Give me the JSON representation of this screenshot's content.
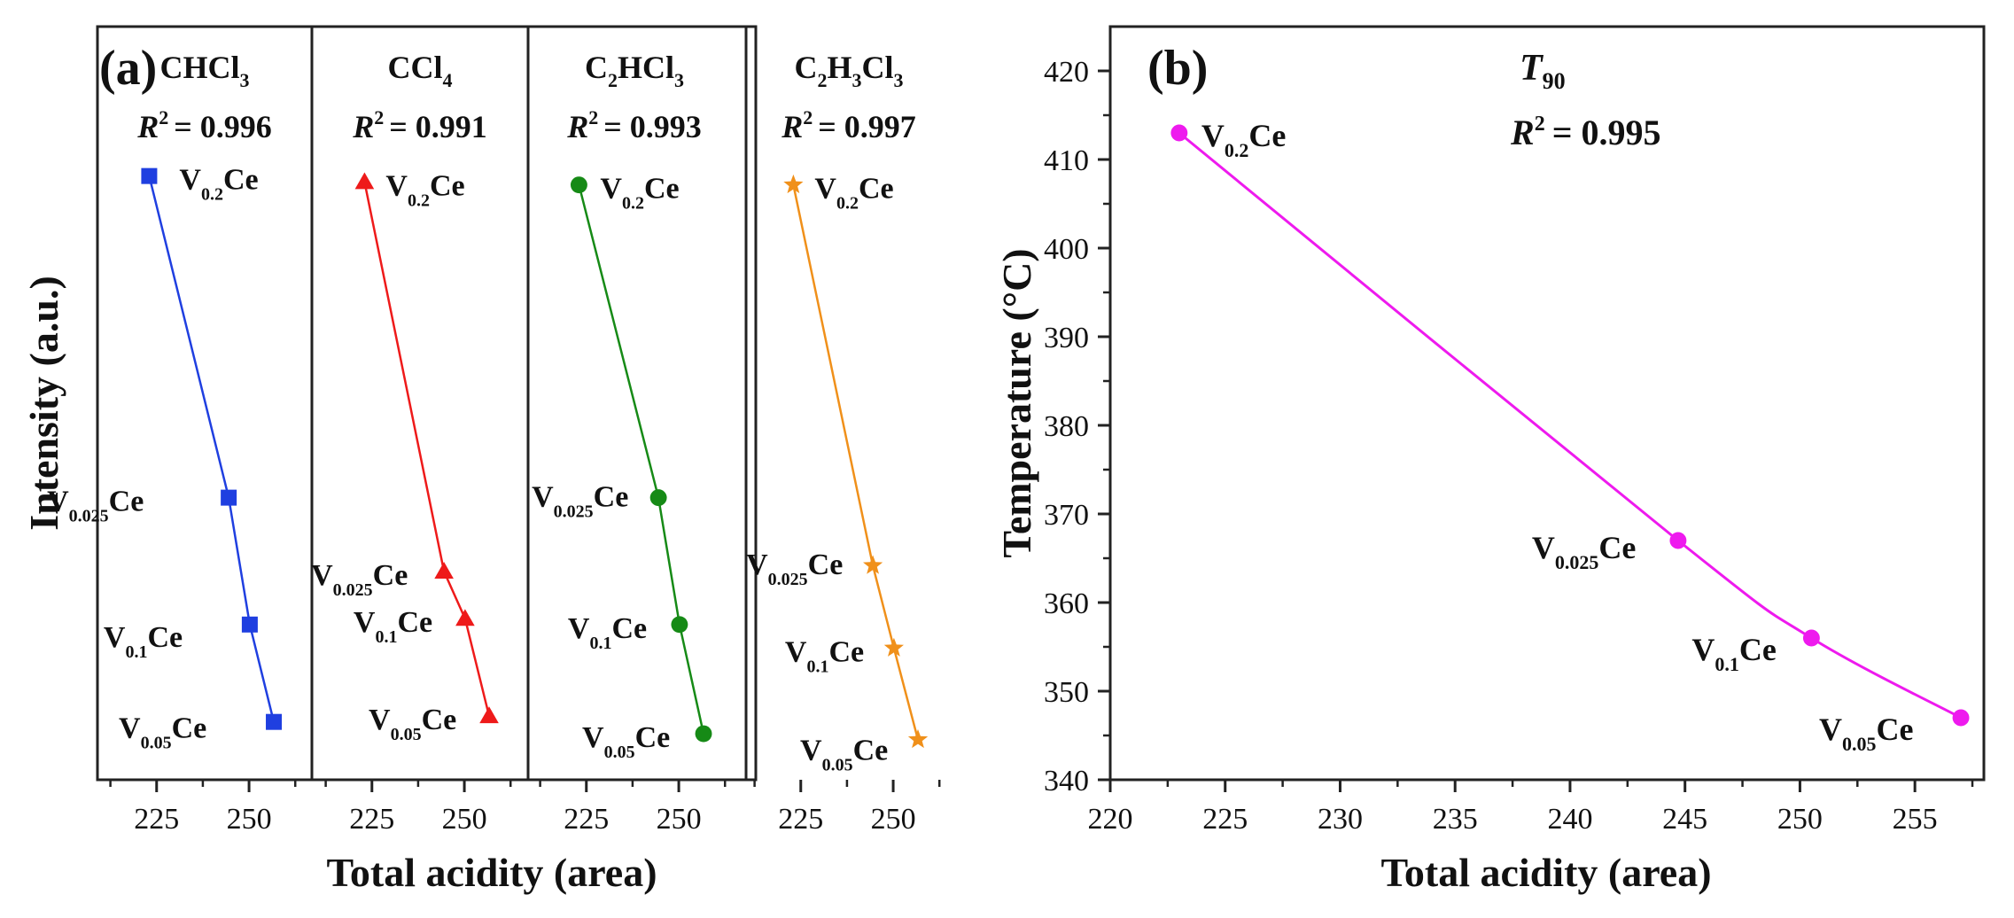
{
  "chart_data": [
    {
      "type": "line",
      "panel_label": "(a)",
      "xlabel": "Total acidity (area)",
      "ylabel": "Intensity (a.u.)",
      "xticks": [
        225,
        250
      ],
      "xlim": [
        209,
        267
      ],
      "ylim": [
        0,
        1
      ],
      "subplots": [
        {
          "name": "CHCl3",
          "title": {
            "main": "CHCl",
            "sub": "3",
            "tail": ""
          },
          "r2_label": "R",
          "r2_value": "= 0.996",
          "color": "#1f3fe0",
          "marker": "square",
          "points": [
            {
              "label": "V",
              "label_sub": "0.2",
              "label_tail": "Ce",
              "x": 223,
              "y": 0.975,
              "lx": 34,
              "ly": 15
            },
            {
              "label": "V",
              "label_sub": "0.025",
              "label_tail": "Ce",
              "x": 244.5,
              "y": 0.43,
              "lx": -205,
              "ly": 15
            },
            {
              "label": "V",
              "label_sub": "0.1",
              "label_tail": "Ce",
              "x": 250.2,
              "y": 0.215,
              "lx": -165,
              "ly": 25
            },
            {
              "label": "V",
              "label_sub": "0.05",
              "label_tail": "Ce",
              "x": 256.7,
              "y": 0.05,
              "lx": -175,
              "ly": 18
            }
          ]
        },
        {
          "name": "CCl4",
          "title": {
            "main": "CCl",
            "sub": "4",
            "tail": ""
          },
          "r2_label": "R",
          "r2_value": "= 0.991",
          "color": "#ee1a1a",
          "marker": "triangle",
          "points": [
            {
              "label": "V",
              "label_sub": "0.2",
              "label_tail": "Ce",
              "x": 223,
              "y": 0.965,
              "lx": 24,
              "ly": 15
            },
            {
              "label": "V",
              "label_sub": "0.025",
              "label_tail": "Ce",
              "x": 244.5,
              "y": 0.305,
              "lx": -150,
              "ly": 15
            },
            {
              "label": "V",
              "label_sub": "0.1",
              "label_tail": "Ce",
              "x": 250.2,
              "y": 0.225,
              "lx": -126,
              "ly": 15
            },
            {
              "label": "V",
              "label_sub": "0.05",
              "label_tail": "Ce",
              "x": 256.7,
              "y": 0.06,
              "lx": -136,
              "ly": 15
            }
          ]
        },
        {
          "name": "C2HCl3",
          "title": {
            "main": "C",
            "sub": "2",
            "tail": "HCl",
            "sub2": "3"
          },
          "r2_label": "R",
          "r2_value": "= 0.993",
          "color": "#168a16",
          "marker": "circle",
          "points": [
            {
              "label": "V",
              "label_sub": "0.2",
              "label_tail": "Ce",
              "x": 223,
              "y": 0.96,
              "lx": 24,
              "ly": 15
            },
            {
              "label": "V",
              "label_sub": "0.025",
              "label_tail": "Ce",
              "x": 244.5,
              "y": 0.43,
              "lx": -143,
              "ly": 10
            },
            {
              "label": "V",
              "label_sub": "0.1",
              "label_tail": "Ce",
              "x": 250.2,
              "y": 0.215,
              "lx": -126,
              "ly": 15
            },
            {
              "label": "V",
              "label_sub": "0.05",
              "label_tail": "Ce",
              "x": 256.7,
              "y": 0.03,
              "lx": -137,
              "ly": 15
            }
          ]
        },
        {
          "name": "C2H3Cl3",
          "title": {
            "main": "C",
            "sub": "2",
            "tail": "H",
            "sub2": "3",
            "tail2": "Cl",
            "sub3": "3"
          },
          "r2_label": "R",
          "r2_value": "= 0.997",
          "color": "#f0901a",
          "marker": "star",
          "points": [
            {
              "label": "V",
              "label_sub": "0.2",
              "label_tail": "Ce",
              "x": 223,
              "y": 0.96,
              "lx": 24,
              "ly": 15
            },
            {
              "label": "V",
              "label_sub": "0.025",
              "label_tail": "Ce",
              "x": 244.5,
              "y": 0.315,
              "lx": -143,
              "ly": 10
            },
            {
              "label": "V",
              "label_sub": "0.1",
              "label_tail": "Ce",
              "x": 250.2,
              "y": 0.175,
              "lx": -123,
              "ly": 15
            },
            {
              "label": "V",
              "label_sub": "0.05",
              "label_tail": "Ce",
              "x": 256.7,
              "y": 0.02,
              "lx": -133,
              "ly": 23
            }
          ]
        }
      ]
    },
    {
      "type": "line",
      "panel_label": "(b)",
      "title": {
        "main": "T",
        "sub": "90"
      },
      "r2_label": "R",
      "r2_value": "= 0.995",
      "xlabel": "Total acidity (area)",
      "ylabel": "Temperature (°C)",
      "xlim": [
        220,
        258
      ],
      "ylim": [
        340,
        425
      ],
      "xticks": [
        220,
        225,
        230,
        235,
        240,
        245,
        250,
        255
      ],
      "yticks": [
        340,
        350,
        360,
        370,
        380,
        390,
        400,
        410,
        420
      ],
      "color": "#ee1aee",
      "marker": "circle",
      "points": [
        {
          "label": "V",
          "label_sub": "0.2",
          "label_tail": "Ce",
          "x": 223,
          "y": 413,
          "lx": 25,
          "ly": 15
        },
        {
          "label": "V",
          "label_sub": "0.025",
          "label_tail": "Ce",
          "x": 244.7,
          "y": 367,
          "lx": -165,
          "ly": 20
        },
        {
          "label": "V",
          "label_sub": "0.1",
          "label_tail": "Ce",
          "x": 250.5,
          "y": 356,
          "lx": -135,
          "ly": 25
        },
        {
          "label": "V",
          "label_sub": "0.05",
          "label_tail": "Ce",
          "x": 257,
          "y": 347,
          "lx": -160,
          "ly": 25
        }
      ]
    }
  ]
}
